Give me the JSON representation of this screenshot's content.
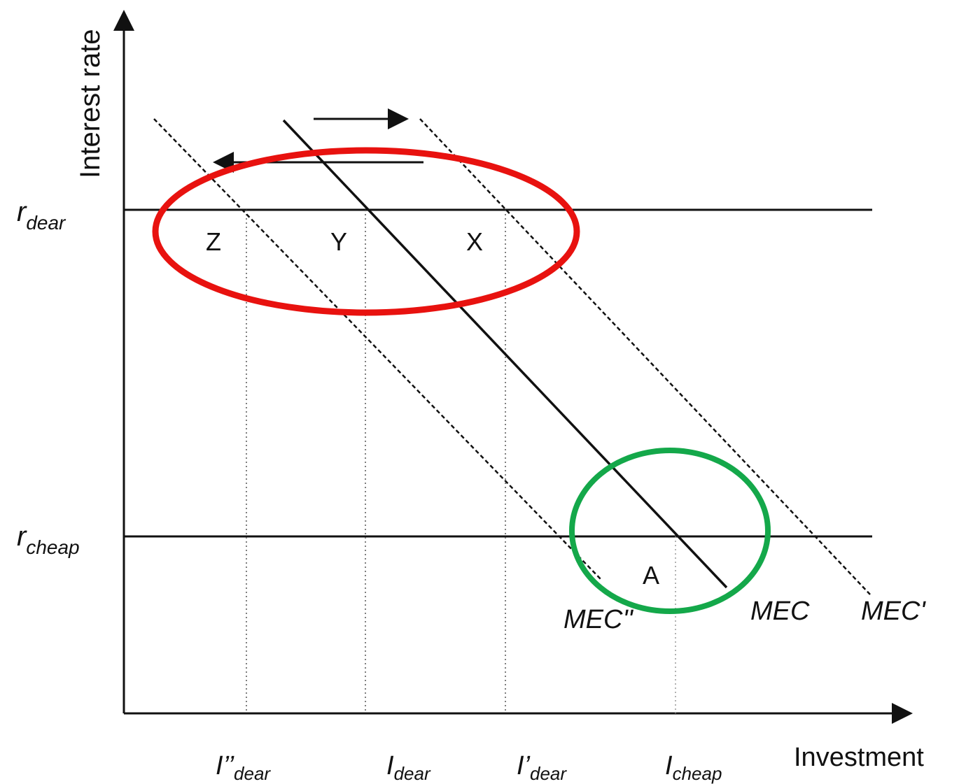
{
  "axes": {
    "y_label": "Interest rate",
    "x_label": "Investment"
  },
  "rates": {
    "dear": {
      "main": "r",
      "sub": "dear"
    },
    "cheap": {
      "main": "r",
      "sub": "cheap"
    }
  },
  "investment_ticks": [
    {
      "main": "I’’",
      "sub": "dear"
    },
    {
      "main": "I",
      "sub": "dear"
    },
    {
      "main": "I’",
      "sub": "dear"
    },
    {
      "main": "I",
      "sub": "cheap"
    }
  ],
  "curves": {
    "mec_double_prime": "MEC''",
    "mec": "MEC",
    "mec_prime": "MEC'"
  },
  "points": {
    "z": "Z",
    "y": "Y",
    "x": "X",
    "a": "A"
  },
  "colors": {
    "axis": "#111111",
    "highlight_red": "#e8120f",
    "highlight_green": "#14a84a"
  }
}
